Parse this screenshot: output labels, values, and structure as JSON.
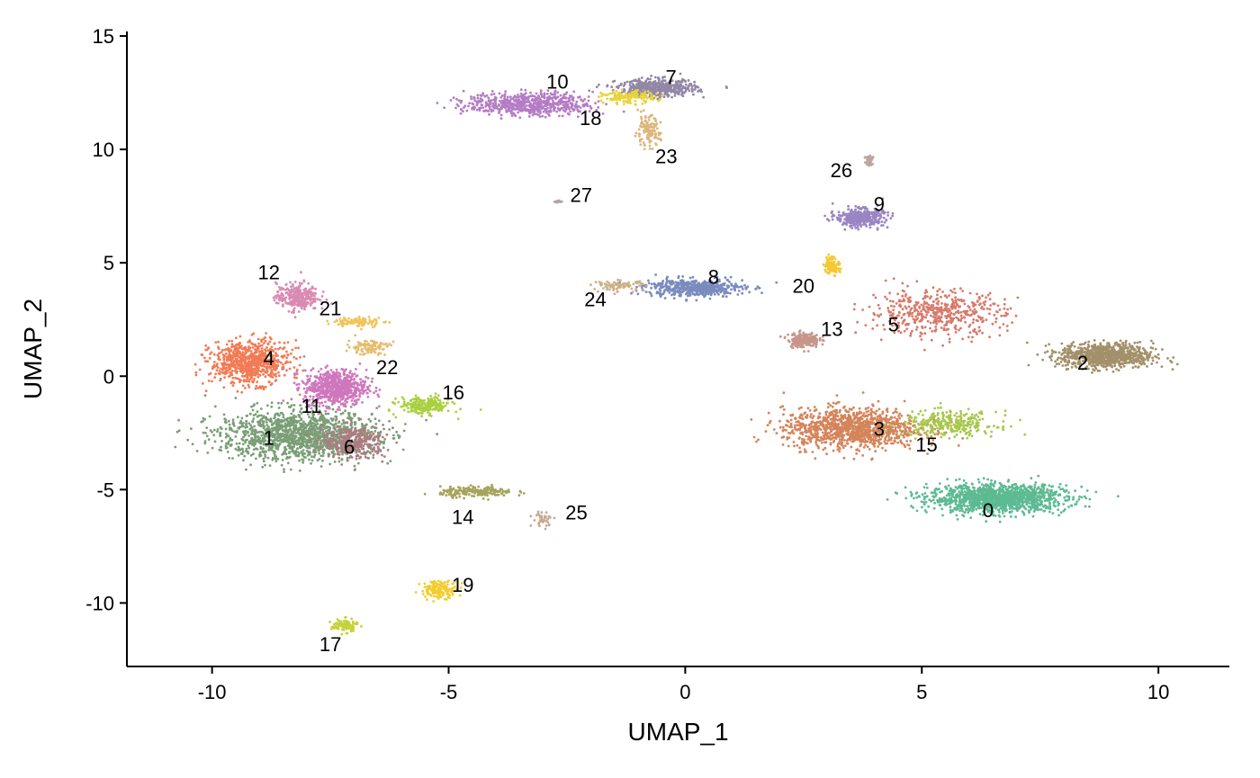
{
  "chart_data": {
    "type": "scatter",
    "title": "",
    "xlabel": "UMAP_1",
    "ylabel": "UMAP_2",
    "xlim": [
      -11.8,
      11.5
    ],
    "ylim": [
      -12.8,
      15.2
    ],
    "xticks": [
      -10,
      -5,
      0,
      5,
      10
    ],
    "yticks": [
      -10,
      -5,
      0,
      5,
      10,
      15
    ],
    "xtick_labels": [
      "-10",
      "-5",
      "0",
      "5",
      "10"
    ],
    "ytick_labels": [
      "-10",
      "-5",
      "0",
      "5",
      "10",
      "15"
    ],
    "grid": false,
    "legend": "none",
    "clusters": [
      {
        "label": "0",
        "color": "#5dba93",
        "cx": 6.6,
        "cy": -5.4,
        "sx": 1.3,
        "sy": 0.55,
        "n": 1400,
        "lx": 6.4,
        "ly": -5.9
      },
      {
        "label": "1",
        "color": "#7a9e76",
        "cx": -8.2,
        "cy": -2.6,
        "sx": 1.5,
        "sy": 1.0,
        "n": 1400,
        "lx": -8.8,
        "ly": -2.7
      },
      {
        "label": "2",
        "color": "#a3906a",
        "cx": 8.9,
        "cy": 0.9,
        "sx": 0.9,
        "sy": 0.5,
        "n": 850,
        "lx": 8.4,
        "ly": 0.6
      },
      {
        "label": "3",
        "color": "#d4845a",
        "cx": 3.5,
        "cy": -2.3,
        "sx": 1.3,
        "sy": 0.8,
        "n": 1150,
        "lx": 4.1,
        "ly": -2.3
      },
      {
        "label": "4",
        "color": "#f27b55",
        "cx": -9.2,
        "cy": 0.6,
        "sx": 0.75,
        "sy": 0.85,
        "n": 750,
        "lx": -8.8,
        "ly": 0.8
      },
      {
        "label": "5",
        "color": "#d77a6a",
        "cx": 5.3,
        "cy": 2.8,
        "sx": 1.3,
        "sy": 0.9,
        "n": 500,
        "lx": 4.4,
        "ly": 2.3
      },
      {
        "label": "6",
        "color": "#ab7d80",
        "cx": -7.0,
        "cy": -2.9,
        "sx": 0.6,
        "sy": 0.65,
        "n": 350,
        "lx": -7.1,
        "ly": -3.1
      },
      {
        "label": "7",
        "color": "#9287a6",
        "cx": -0.6,
        "cy": 12.7,
        "sx": 0.75,
        "sy": 0.35,
        "n": 500,
        "lx": -0.3,
        "ly": 13.2
      },
      {
        "label": "8",
        "color": "#7a8bbf",
        "cx": 0.2,
        "cy": 3.9,
        "sx": 0.95,
        "sy": 0.35,
        "n": 500,
        "lx": 0.6,
        "ly": 4.4
      },
      {
        "label": "9",
        "color": "#9a85c3",
        "cx": 3.7,
        "cy": 7.0,
        "sx": 0.45,
        "sy": 0.35,
        "n": 400,
        "lx": 4.1,
        "ly": 7.6
      },
      {
        "label": "10",
        "color": "#b47cc4",
        "cx": -3.3,
        "cy": 12.0,
        "sx": 1.2,
        "sy": 0.45,
        "n": 650,
        "lx": -2.7,
        "ly": 13.0
      },
      {
        "label": "11",
        "color": "#cf77bd",
        "cx": -7.4,
        "cy": -0.5,
        "sx": 0.6,
        "sy": 0.7,
        "n": 650,
        "lx": -7.9,
        "ly": -1.3
      },
      {
        "label": "12",
        "color": "#d98ab3",
        "cx": -8.2,
        "cy": 3.5,
        "sx": 0.4,
        "sy": 0.55,
        "n": 300,
        "lx": -8.8,
        "ly": 4.6
      },
      {
        "label": "13",
        "color": "#c7958a",
        "cx": 2.5,
        "cy": 1.6,
        "sx": 0.3,
        "sy": 0.3,
        "n": 200,
        "lx": 3.1,
        "ly": 2.1
      },
      {
        "label": "14",
        "color": "#a5a45c",
        "cx": -4.4,
        "cy": -5.1,
        "sx": 0.7,
        "sy": 0.2,
        "n": 200,
        "lx": -4.7,
        "ly": -6.2
      },
      {
        "label": "15",
        "color": "#a8c74d",
        "cx": 5.6,
        "cy": -2.1,
        "sx": 0.9,
        "sy": 0.5,
        "n": 300,
        "lx": 5.1,
        "ly": -3.0
      },
      {
        "label": "16",
        "color": "#a9d040",
        "cx": -5.5,
        "cy": -1.3,
        "sx": 0.5,
        "sy": 0.35,
        "n": 220,
        "lx": -4.9,
        "ly": -0.7
      },
      {
        "label": "17",
        "color": "#c5d23a",
        "cx": -7.2,
        "cy": -11.0,
        "sx": 0.25,
        "sy": 0.25,
        "n": 120,
        "lx": -7.5,
        "ly": -11.8
      },
      {
        "label": "18",
        "color": "#e8d43a",
        "cx": -1.2,
        "cy": 12.3,
        "sx": 0.5,
        "sy": 0.25,
        "n": 150,
        "lx": -2.0,
        "ly": 11.4
      },
      {
        "label": "19",
        "color": "#f2cd2d",
        "cx": -5.2,
        "cy": -9.4,
        "sx": 0.35,
        "sy": 0.35,
        "n": 150,
        "lx": -4.7,
        "ly": -9.2
      },
      {
        "label": "20",
        "color": "#f5c832",
        "cx": 3.1,
        "cy": 4.9,
        "sx": 0.15,
        "sy": 0.35,
        "n": 100,
        "lx": 2.5,
        "ly": 4.0
      },
      {
        "label": "21",
        "color": "#efc45c",
        "cx": -6.9,
        "cy": 2.4,
        "sx": 0.5,
        "sy": 0.2,
        "n": 100,
        "lx": -7.5,
        "ly": 3.0
      },
      {
        "label": "22",
        "color": "#e6bc6a",
        "cx": -6.7,
        "cy": 1.3,
        "sx": 0.4,
        "sy": 0.3,
        "n": 100,
        "lx": -6.3,
        "ly": 0.4
      },
      {
        "label": "23",
        "color": "#ddb57b",
        "cx": -0.8,
        "cy": 10.8,
        "sx": 0.25,
        "sy": 0.6,
        "n": 120,
        "lx": -0.4,
        "ly": 9.7
      },
      {
        "label": "24",
        "color": "#cdb089",
        "cx": -1.4,
        "cy": 4.0,
        "sx": 0.5,
        "sy": 0.2,
        "n": 80,
        "lx": -1.9,
        "ly": 3.4
      },
      {
        "label": "25",
        "color": "#c4ab94",
        "cx": -3.0,
        "cy": -6.3,
        "sx": 0.2,
        "sy": 0.3,
        "n": 40,
        "lx": -2.3,
        "ly": -6.0
      },
      {
        "label": "26",
        "color": "#bba79e",
        "cx": 3.9,
        "cy": 9.5,
        "sx": 0.1,
        "sy": 0.3,
        "n": 40,
        "lx": 3.3,
        "ly": 9.1
      },
      {
        "label": "27",
        "color": "#b3a3a7",
        "cx": -2.7,
        "cy": 7.7,
        "sx": 0.1,
        "sy": 0.05,
        "n": 12,
        "lx": -2.2,
        "ly": 8.0
      }
    ]
  }
}
